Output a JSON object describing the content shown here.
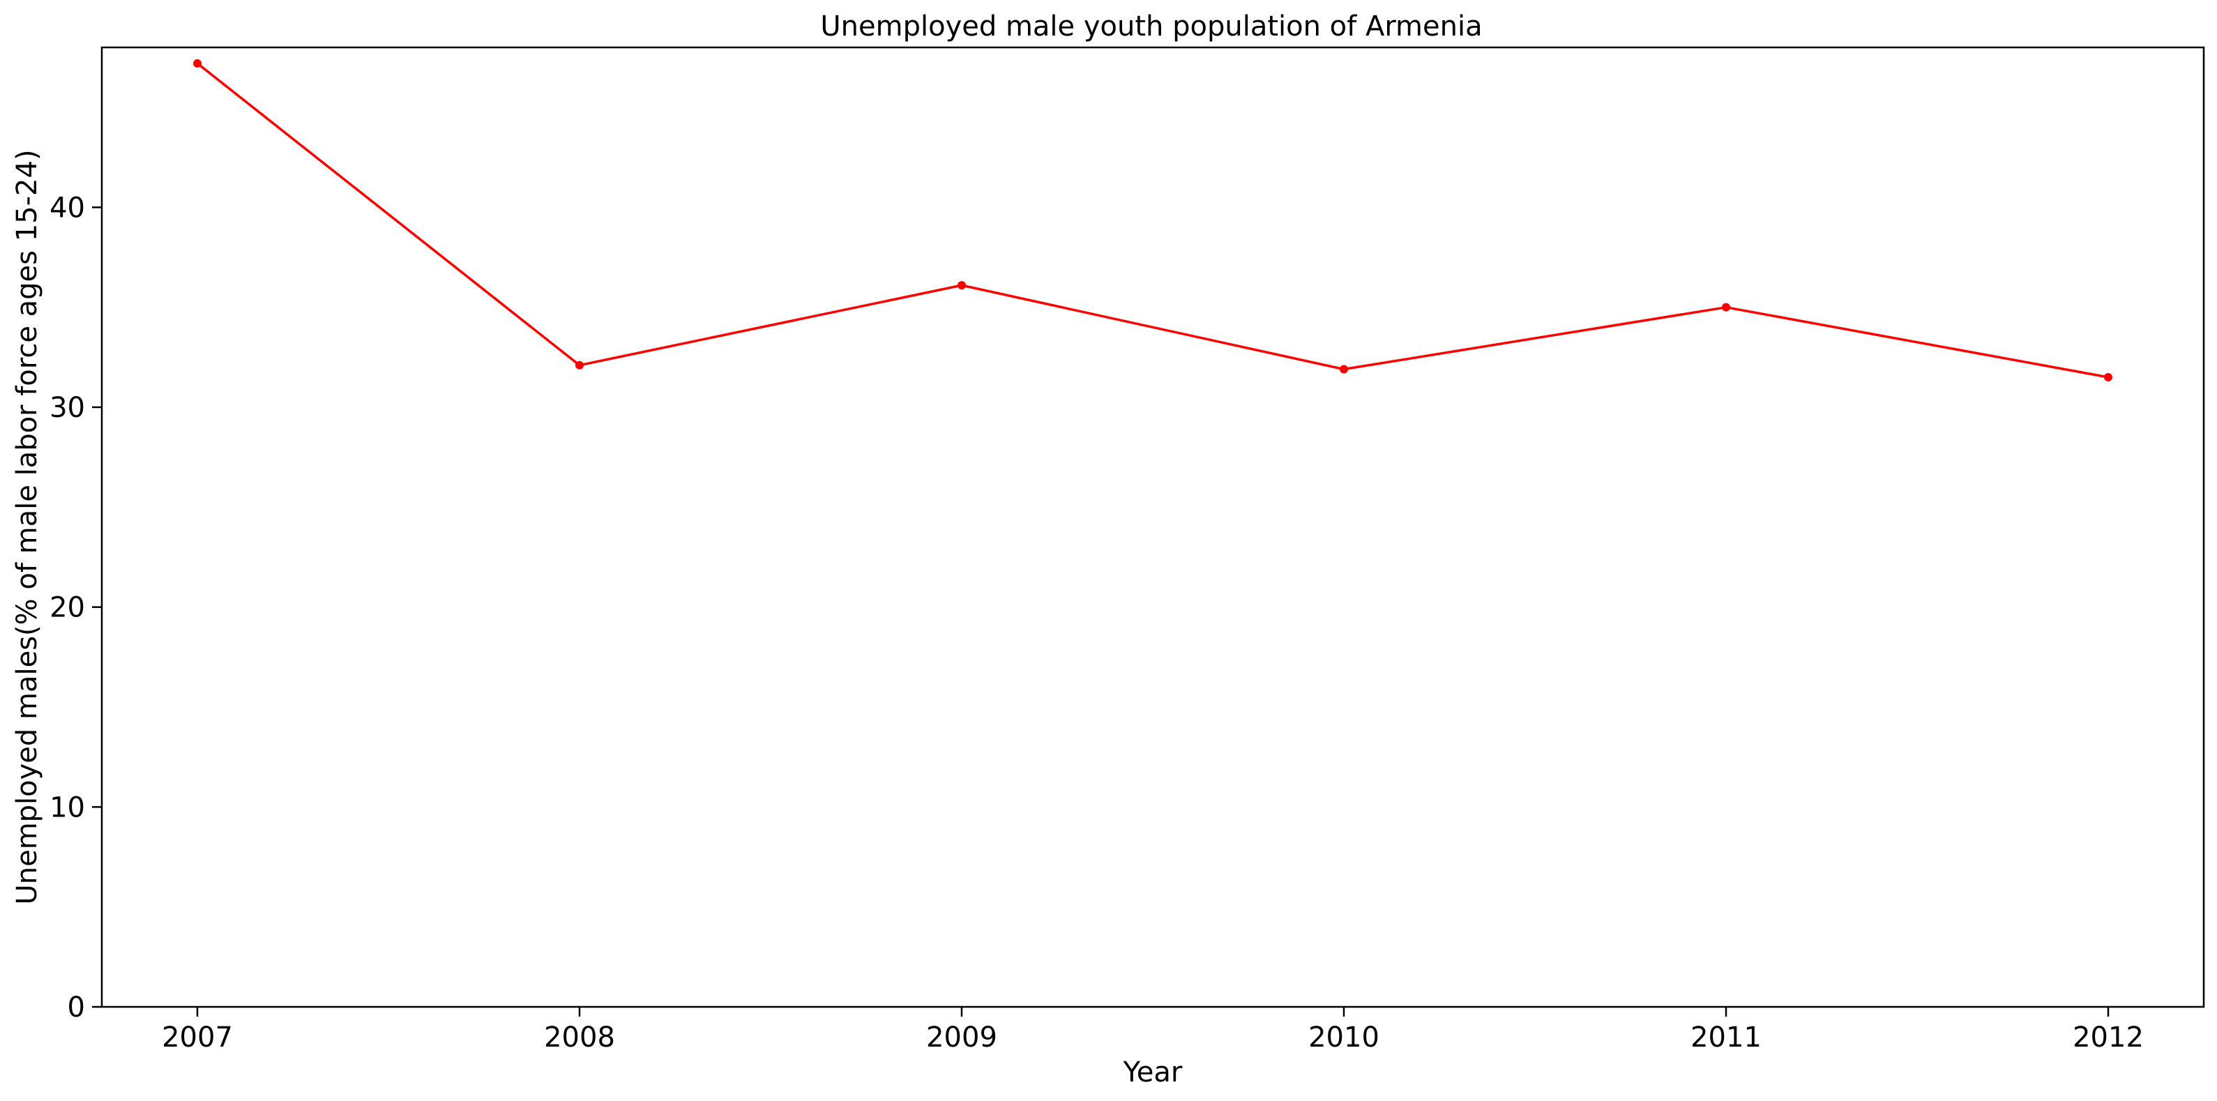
{
  "chart_data": {
    "type": "line",
    "title": "Unemployed male youth population of Armenia",
    "xlabel": "Year",
    "ylabel": "Unemployed males(% of male labor force ages 15-24)",
    "x": [
      "2007",
      "2008",
      "2009",
      "2010",
      "2011",
      "2012"
    ],
    "series": [
      {
        "values": [
          47.2,
          32.1,
          36.1,
          31.9,
          35.0,
          31.5
        ],
        "color": "#ff0000",
        "marker": "circle"
      }
    ],
    "ylim": [
      0,
      48
    ],
    "yticks": [
      "0",
      "10",
      "20",
      "30",
      "40"
    ],
    "grid": false,
    "legend": "none"
  }
}
